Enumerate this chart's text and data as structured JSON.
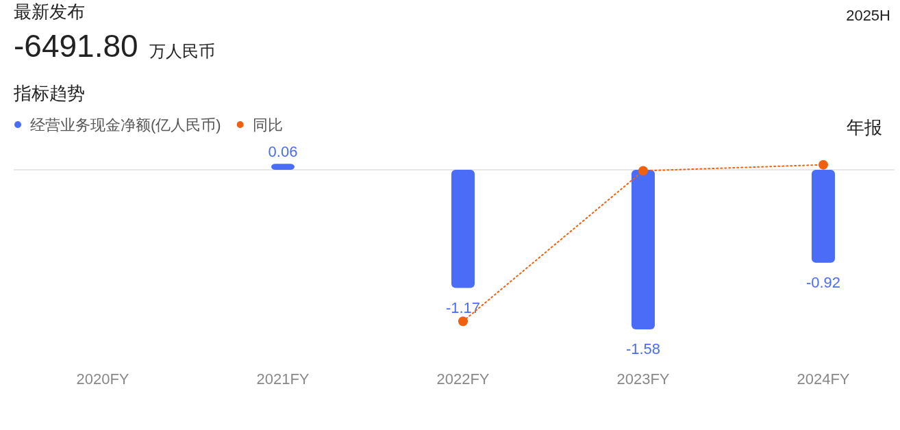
{
  "chart_data": {
    "type": "bar",
    "title": "最新发布",
    "subtitle": "-6491.80 万人民币",
    "annotations": [
      "2025H",
      "指标趋势",
      "年报"
    ],
    "categories": [
      "2020FY",
      "2021FY",
      "2022FY",
      "2023FY",
      "2024FY"
    ],
    "legend": "top left",
    "series": [
      {
        "name": "经营业务现金净额(亿人民币)",
        "color": "#4a6cf7",
        "values": [
          null,
          0.06,
          -1.17,
          -1.58,
          -0.92
        ],
        "value_labels": [
          null,
          "0.06",
          "-1.17",
          "-1.58",
          "-0.92"
        ]
      },
      {
        "name": "同比",
        "type": "line",
        "color": "#f0600f",
        "marker": "circle",
        "line_style": "dotted",
        "values": [
          null,
          null,
          -1.5,
          -0.01,
          0.05
        ]
      }
    ]
  }
}
